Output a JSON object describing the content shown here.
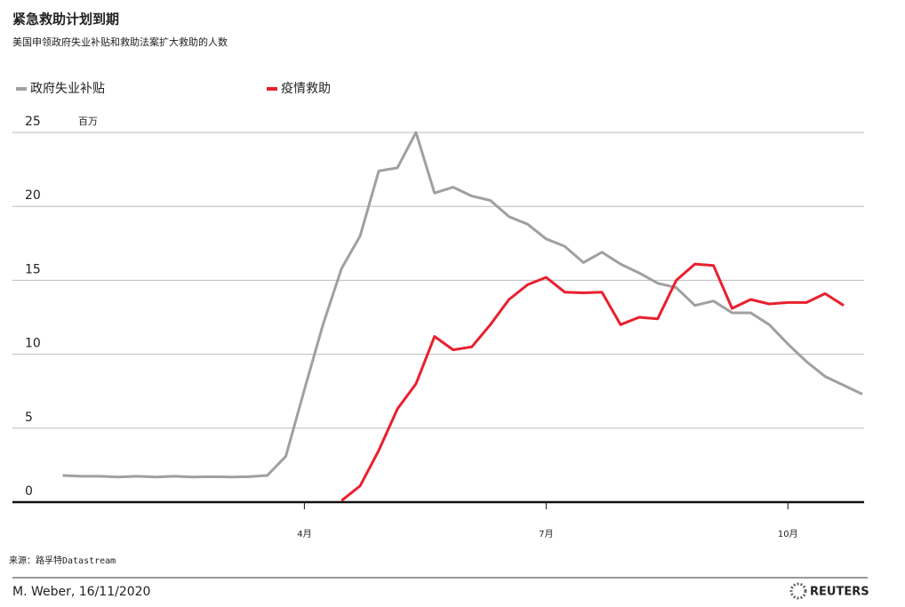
{
  "chart_data": {
    "type": "line",
    "title": "紧急救助计划到期",
    "subtitle": "美国申领政府失业补贴和救助法案扩大救助的人数",
    "y_unit": "百万",
    "source": "来源：路孚特Datastream",
    "credit": "M. Weber, 16/11/2020",
    "logo": "REUTERS",
    "x": [
      0,
      1,
      2,
      3,
      4,
      5,
      6,
      7,
      8,
      9,
      10,
      11,
      12,
      13,
      14,
      15,
      16,
      17,
      18,
      19,
      20,
      21,
      22,
      23,
      24,
      25,
      26,
      27,
      28,
      29,
      30,
      31,
      32,
      33,
      34,
      35,
      36,
      37,
      38,
      39,
      40,
      41,
      42,
      43
    ],
    "series": [
      {
        "name": "政府失业补贴",
        "color": "#a0a0a0",
        "values": [
          1.8,
          1.75,
          1.75,
          1.7,
          1.75,
          1.7,
          1.75,
          1.7,
          1.72,
          1.7,
          1.72,
          1.8,
          3.1,
          7.6,
          12,
          15.8,
          18,
          22.4,
          22.6,
          25,
          20.9,
          21.3,
          20.7,
          20.4,
          19.3,
          18.8,
          17.8,
          17.3,
          16.2,
          16.9,
          16.1,
          15.5,
          14.8,
          14.5,
          13.3,
          13.6,
          12.8,
          12.8,
          12,
          10.7,
          9.5,
          8.5,
          7.9,
          7.3
        ]
      },
      {
        "name": "疫情救助",
        "color": "#e8202f",
        "values": [
          null,
          null,
          null,
          null,
          null,
          null,
          null,
          null,
          null,
          null,
          null,
          null,
          null,
          null,
          null,
          0.1,
          1.1,
          3.5,
          6.3,
          8,
          11.2,
          10.3,
          10.5,
          12,
          13.7,
          14.7,
          15.2,
          14.2,
          14.15,
          14.2,
          12,
          12.5,
          12.4,
          15,
          16.1,
          16,
          13.1,
          13.7,
          13.4,
          13.5,
          13.5,
          14.1,
          13.3,
          null
        ]
      }
    ],
    "xlim": [
      -2.7,
      43.1
    ],
    "xticks": [
      {
        "value": 13,
        "label": "4月"
      },
      {
        "value": 26,
        "label": "7月"
      },
      {
        "value": 39,
        "label": "10月"
      }
    ],
    "ylim": [
      0,
      25
    ],
    "yticks": [
      0,
      5,
      10,
      15,
      20,
      25
    ],
    "grid": true
  }
}
